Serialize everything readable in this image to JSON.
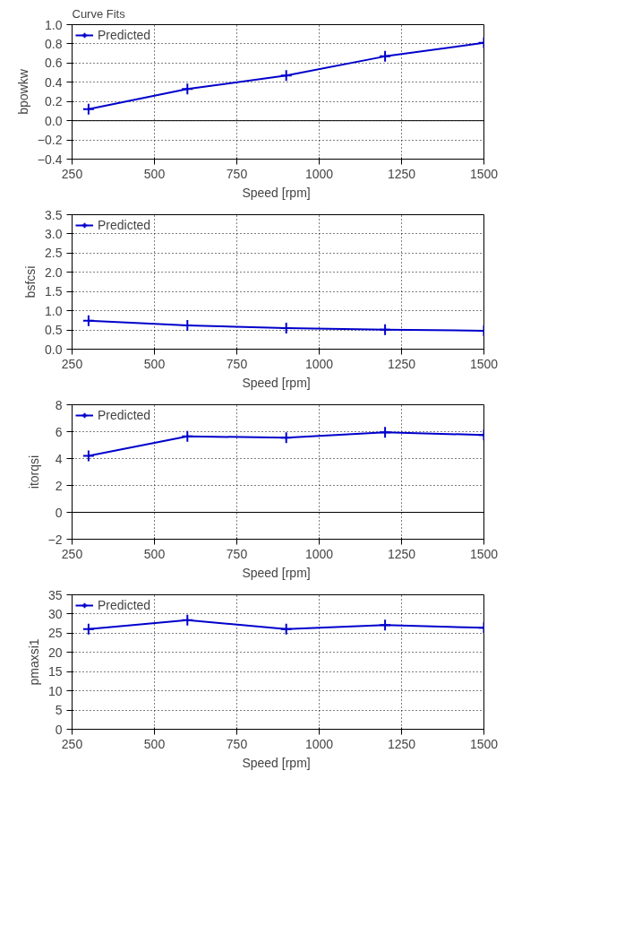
{
  "chart_data": [
    {
      "type": "line",
      "title": "Curve Fits",
      "xlabel": "Speed  [rpm]",
      "ylabel": "bpowkw",
      "x": [
        300,
        600,
        900,
        1200,
        1500
      ],
      "series": [
        {
          "name": "Predicted",
          "color": "#0000cc",
          "values": [
            0.12,
            0.33,
            0.47,
            0.67,
            0.81
          ]
        }
      ],
      "xlim": [
        250,
        1500
      ],
      "xticks": [
        250,
        500,
        750,
        1000,
        1250,
        1500
      ],
      "ylim": [
        -0.4,
        1.0
      ],
      "yticks": [
        -0.4,
        -0.2,
        {
          "value": 0,
          "label": "0.0"
        },
        0.2,
        0.4,
        0.6,
        0.8,
        {
          "value": 1,
          "label": "1.0"
        }
      ],
      "ref_lines": [
        {
          "axis": "y",
          "value": 0,
          "color": "#000000"
        }
      ],
      "grid": true,
      "legend": "top left",
      "marker": "cross",
      "line_style": "solid"
    },
    {
      "type": "line",
      "xlabel": "Speed  [rpm]",
      "ylabel": "bsfcsi",
      "x": [
        300,
        600,
        900,
        1200,
        1500
      ],
      "series": [
        {
          "name": "Predicted",
          "color": "#0000cc",
          "values": [
            0.74,
            0.62,
            0.55,
            0.51,
            0.48
          ]
        }
      ],
      "xlim": [
        250,
        1500
      ],
      "xticks": [
        250,
        500,
        750,
        1000,
        1250,
        1500
      ],
      "ylim": [
        0,
        3.5
      ],
      "yticks": [
        {
          "value": 0,
          "label": "0.0"
        },
        0.5,
        {
          "value": 1,
          "label": "1.0"
        },
        1.5,
        {
          "value": 2,
          "label": "2.0"
        },
        2.5,
        {
          "value": 3,
          "label": "3.0"
        },
        3.5
      ],
      "grid": true,
      "legend": "top left",
      "marker": "cross",
      "line_style": "solid"
    },
    {
      "type": "line",
      "xlabel": "Speed  [rpm]",
      "ylabel": "itorqsi",
      "x": [
        300,
        600,
        900,
        1200,
        1500
      ],
      "series": [
        {
          "name": "Predicted",
          "color": "#0000cc",
          "values": [
            4.2,
            5.65,
            5.55,
            5.95,
            5.75
          ]
        }
      ],
      "xlim": [
        250,
        1500
      ],
      "xticks": [
        250,
        500,
        750,
        1000,
        1250,
        1500
      ],
      "ylim": [
        -2,
        8
      ],
      "yticks": [
        -2,
        0,
        2,
        4,
        6,
        8
      ],
      "ref_lines": [
        {
          "axis": "y",
          "value": 0,
          "color": "#000000"
        }
      ],
      "grid": true,
      "legend": "top left",
      "marker": "cross",
      "line_style": "solid"
    },
    {
      "type": "line",
      "xlabel": "Speed  [rpm]",
      "ylabel": "pmaxsi1",
      "x": [
        300,
        600,
        900,
        1200,
        1500
      ],
      "series": [
        {
          "name": "Predicted",
          "color": "#0000cc",
          "values": [
            26.1,
            28.4,
            26.1,
            27.1,
            26.4
          ]
        }
      ],
      "xlim": [
        250,
        1500
      ],
      "xticks": [
        250,
        500,
        750,
        1000,
        1250,
        1500
      ],
      "ylim": [
        0,
        35
      ],
      "yticks": [
        0,
        5,
        10,
        15,
        20,
        25,
        30,
        35
      ],
      "grid": true,
      "legend": "top left",
      "marker": "cross",
      "line_style": "solid"
    }
  ]
}
